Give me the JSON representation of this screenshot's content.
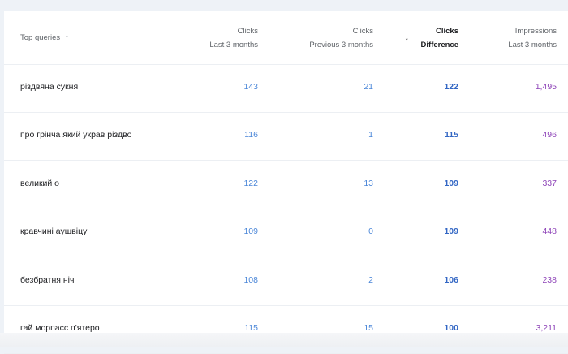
{
  "header": {
    "query": {
      "label": "Top queries",
      "sort_icon": "arrow-up-icon"
    },
    "columns": [
      {
        "line1": "Clicks",
        "line2": "Last 3 months"
      },
      {
        "line1": "Clicks",
        "line2": "Previous 3 months"
      },
      {
        "line1": "Clicks",
        "line2": "Difference",
        "sort_icon": "arrow-down-icon",
        "arrow": "↓"
      },
      {
        "line1": "Impressions",
        "line2": "Last 3 months"
      }
    ]
  },
  "rows": [
    {
      "query": "різдвяна сукня",
      "clicks": "143",
      "prev": "21",
      "diff": "122",
      "impr": "1,495"
    },
    {
      "query": "про грінча який украв різдво",
      "clicks": "116",
      "prev": "1",
      "diff": "115",
      "impr": "496"
    },
    {
      "query": "великий о",
      "clicks": "122",
      "prev": "13",
      "diff": "109",
      "impr": "337"
    },
    {
      "query": "кравчині аушвіцу",
      "clicks": "109",
      "prev": "0",
      "diff": "109",
      "impr": "448"
    },
    {
      "query": "безбратня ніч",
      "clicks": "108",
      "prev": "2",
      "diff": "106",
      "impr": "238"
    },
    {
      "query": "гай морпасс п'ятеро",
      "clicks": "115",
      "prev": "15",
      "diff": "100",
      "impr": "3,211"
    }
  ],
  "colors": {
    "clicks": "#4a86d8",
    "diff": "#3367c4",
    "impressions": "#8e44b8"
  }
}
